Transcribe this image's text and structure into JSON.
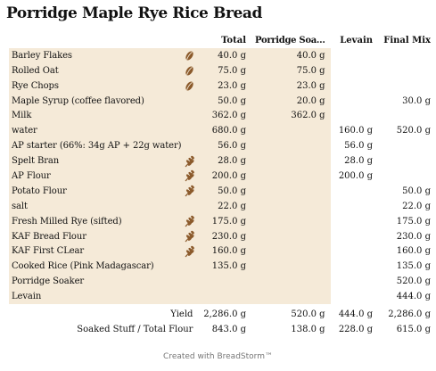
{
  "title": "Porridge Maple Rye Rice Bread",
  "headers": {
    "total": "Total",
    "soaker": "Porridge Soa…",
    "levain": "Levain",
    "final": "Final Mix"
  },
  "ingredients": [
    {
      "name": "Barley Flakes",
      "icon": "grain-icon",
      "total": "40.0 g",
      "soaker": "40.0 g",
      "levain": "",
      "final": ""
    },
    {
      "name": "Rolled Oat",
      "icon": "grain-icon",
      "total": "75.0 g",
      "soaker": "75.0 g",
      "levain": "",
      "final": ""
    },
    {
      "name": "Rye Chops",
      "icon": "grain-icon",
      "total": "23.0 g",
      "soaker": "23.0 g",
      "levain": "",
      "final": ""
    },
    {
      "name": "Maple Syrup (coffee flavored)",
      "icon": "",
      "total": "50.0 g",
      "soaker": "20.0 g",
      "levain": "",
      "final": "30.0 g"
    },
    {
      "name": "Milk",
      "icon": "",
      "total": "362.0 g",
      "soaker": "362.0 g",
      "levain": "",
      "final": ""
    },
    {
      "name": "water",
      "icon": "",
      "total": "680.0 g",
      "soaker": "",
      "levain": "160.0 g",
      "final": "520.0 g"
    },
    {
      "name": "AP starter (66%: 34g AP + 22g water)",
      "icon": "",
      "total": "56.0 g",
      "soaker": "",
      "levain": "56.0 g",
      "final": ""
    },
    {
      "name": "Spelt Bran",
      "icon": "wheat-icon",
      "total": "28.0 g",
      "soaker": "",
      "levain": "28.0 g",
      "final": ""
    },
    {
      "name": "AP Flour",
      "icon": "wheat-icon",
      "total": "200.0 g",
      "soaker": "",
      "levain": "200.0 g",
      "final": ""
    },
    {
      "name": "Potato Flour",
      "icon": "wheat-icon",
      "total": "50.0 g",
      "soaker": "",
      "levain": "",
      "final": "50.0 g"
    },
    {
      "name": "salt",
      "icon": "",
      "total": "22.0 g",
      "soaker": "",
      "levain": "",
      "final": "22.0 g"
    },
    {
      "name": "Fresh Milled Rye (sifted)",
      "icon": "wheat-icon",
      "total": "175.0 g",
      "soaker": "",
      "levain": "",
      "final": "175.0 g"
    },
    {
      "name": "KAF Bread Flour",
      "icon": "wheat-icon",
      "total": "230.0 g",
      "soaker": "",
      "levain": "",
      "final": "230.0 g"
    },
    {
      "name": "KAF First CLear",
      "icon": "wheat-icon",
      "total": "160.0 g",
      "soaker": "",
      "levain": "",
      "final": "160.0 g"
    },
    {
      "name": "Cooked Rice (Pink Madagascar)",
      "icon": "",
      "total": "135.0 g",
      "soaker": "",
      "levain": "",
      "final": "135.0 g"
    },
    {
      "name": "Porridge Soaker",
      "icon": "",
      "total": "",
      "soaker": "",
      "levain": "",
      "final": "520.0 g"
    },
    {
      "name": "Levain",
      "icon": "",
      "total": "",
      "soaker": "",
      "levain": "",
      "final": "444.0 g"
    }
  ],
  "summary": [
    {
      "label": "Yield",
      "total": "2,286.0 g",
      "soaker": "520.0 g",
      "levain": "444.0 g",
      "final": "2,286.0 g"
    },
    {
      "label": "Soaked Stuff / Total Flour",
      "total": "843.0 g",
      "soaker": "138.0 g",
      "levain": "228.0 g",
      "final": "615.0 g"
    }
  ],
  "colors": {
    "row_bg": "#f5ead8",
    "icon": "#8b5a2b"
  },
  "footer": "Created with BreadStorm™"
}
